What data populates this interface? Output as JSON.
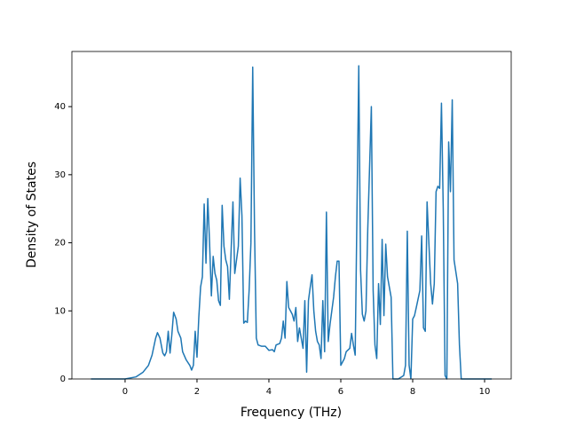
{
  "chart_data": {
    "type": "line",
    "xlabel": "Frequency (THz)",
    "ylabel": "Density of States",
    "xlim": [
      -1.48,
      10.74
    ],
    "ylim": [
      0,
      48.1
    ],
    "xticks": [
      0,
      2,
      4,
      6,
      8,
      10
    ],
    "yticks": [
      0,
      10,
      20,
      30,
      40
    ],
    "grid": false,
    "series": [
      {
        "color": "#1f77b4",
        "x": [
          -0.95,
          0.0,
          0.3,
          0.5,
          0.65,
          0.75,
          0.85,
          0.9,
          0.97,
          1.05,
          1.1,
          1.15,
          1.2,
          1.25,
          1.3,
          1.35,
          1.42,
          1.47,
          1.55,
          1.6,
          1.7,
          1.8,
          1.85,
          1.9,
          1.95,
          2.0,
          2.05,
          2.1,
          2.15,
          2.2,
          2.25,
          2.3,
          2.35,
          2.4,
          2.45,
          2.5,
          2.55,
          2.6,
          2.65,
          2.7,
          2.75,
          2.8,
          2.85,
          2.9,
          2.95,
          3.0,
          3.05,
          3.1,
          3.15,
          3.2,
          3.25,
          3.3,
          3.35,
          3.4,
          3.45,
          3.5,
          3.55,
          3.6,
          3.65,
          3.7,
          3.8,
          3.9,
          4.0,
          4.1,
          4.15,
          4.2,
          4.3,
          4.35,
          4.4,
          4.45,
          4.5,
          4.55,
          4.6,
          4.65,
          4.7,
          4.75,
          4.8,
          4.85,
          4.9,
          4.95,
          5.0,
          5.05,
          5.1,
          5.15,
          5.2,
          5.25,
          5.3,
          5.35,
          5.4,
          5.45,
          5.5,
          5.55,
          5.6,
          5.65,
          5.7,
          5.8,
          5.85,
          5.9,
          5.95,
          6.0,
          6.1,
          6.15,
          6.25,
          6.3,
          6.35,
          6.4,
          6.5,
          6.55,
          6.6,
          6.65,
          6.7,
          6.75,
          6.85,
          6.9,
          6.95,
          7.0,
          7.05,
          7.1,
          7.15,
          7.2,
          7.25,
          7.3,
          7.4,
          7.45,
          7.6,
          7.75,
          7.8,
          7.85,
          7.9,
          7.95,
          8.0,
          8.05,
          8.1,
          8.2,
          8.25,
          8.3,
          8.35,
          8.4,
          8.5,
          8.55,
          8.6,
          8.65,
          8.7,
          8.75,
          8.8,
          8.85,
          8.9,
          8.95,
          9.0,
          9.05,
          9.1,
          9.15,
          9.25,
          9.3,
          9.35,
          10.2
        ],
        "values": [
          0,
          0,
          0.3,
          1,
          2,
          3.5,
          6,
          6.8,
          6,
          3.8,
          3.4,
          4,
          7,
          3.8,
          6.5,
          9.8,
          8.8,
          7,
          6,
          4,
          2.8,
          2,
          1.3,
          2,
          7,
          3.2,
          9,
          13.5,
          15,
          25.7,
          17,
          26.5,
          20,
          12.2,
          18,
          15.5,
          14.5,
          11.5,
          10.8,
          25.5,
          19.5,
          17.5,
          16.5,
          11.7,
          19,
          26,
          15.5,
          17.5,
          19.5,
          29.5,
          24,
          8.2,
          8.5,
          8.3,
          13,
          20,
          45.8,
          22,
          6,
          5,
          4.8,
          4.8,
          4.2,
          4.3,
          4,
          5,
          5.2,
          6,
          8.5,
          6,
          14.3,
          10.5,
          10,
          9.5,
          8.5,
          10.5,
          5.5,
          7.5,
          6,
          4.5,
          11.5,
          1,
          11.5,
          13.5,
          15.3,
          10,
          7,
          5.5,
          5,
          3,
          11.5,
          4,
          24.5,
          5.5,
          8,
          12,
          15,
          17.3,
          17.3,
          2,
          3,
          4,
          4.5,
          6.7,
          5,
          3.5,
          46,
          16,
          9.5,
          8.5,
          10,
          22,
          40,
          13,
          5,
          3,
          14,
          8,
          20.5,
          9.3,
          19.8,
          15,
          12,
          0,
          0,
          0.5,
          2,
          21.7,
          2,
          0,
          8.8,
          9.3,
          10.5,
          13,
          21,
          7.5,
          7,
          26,
          14,
          11,
          14,
          27.5,
          28.3,
          28,
          40.5,
          25,
          0.5,
          0,
          34.8,
          27.5,
          41,
          17.5,
          14,
          5,
          0,
          0
        ]
      }
    ]
  }
}
